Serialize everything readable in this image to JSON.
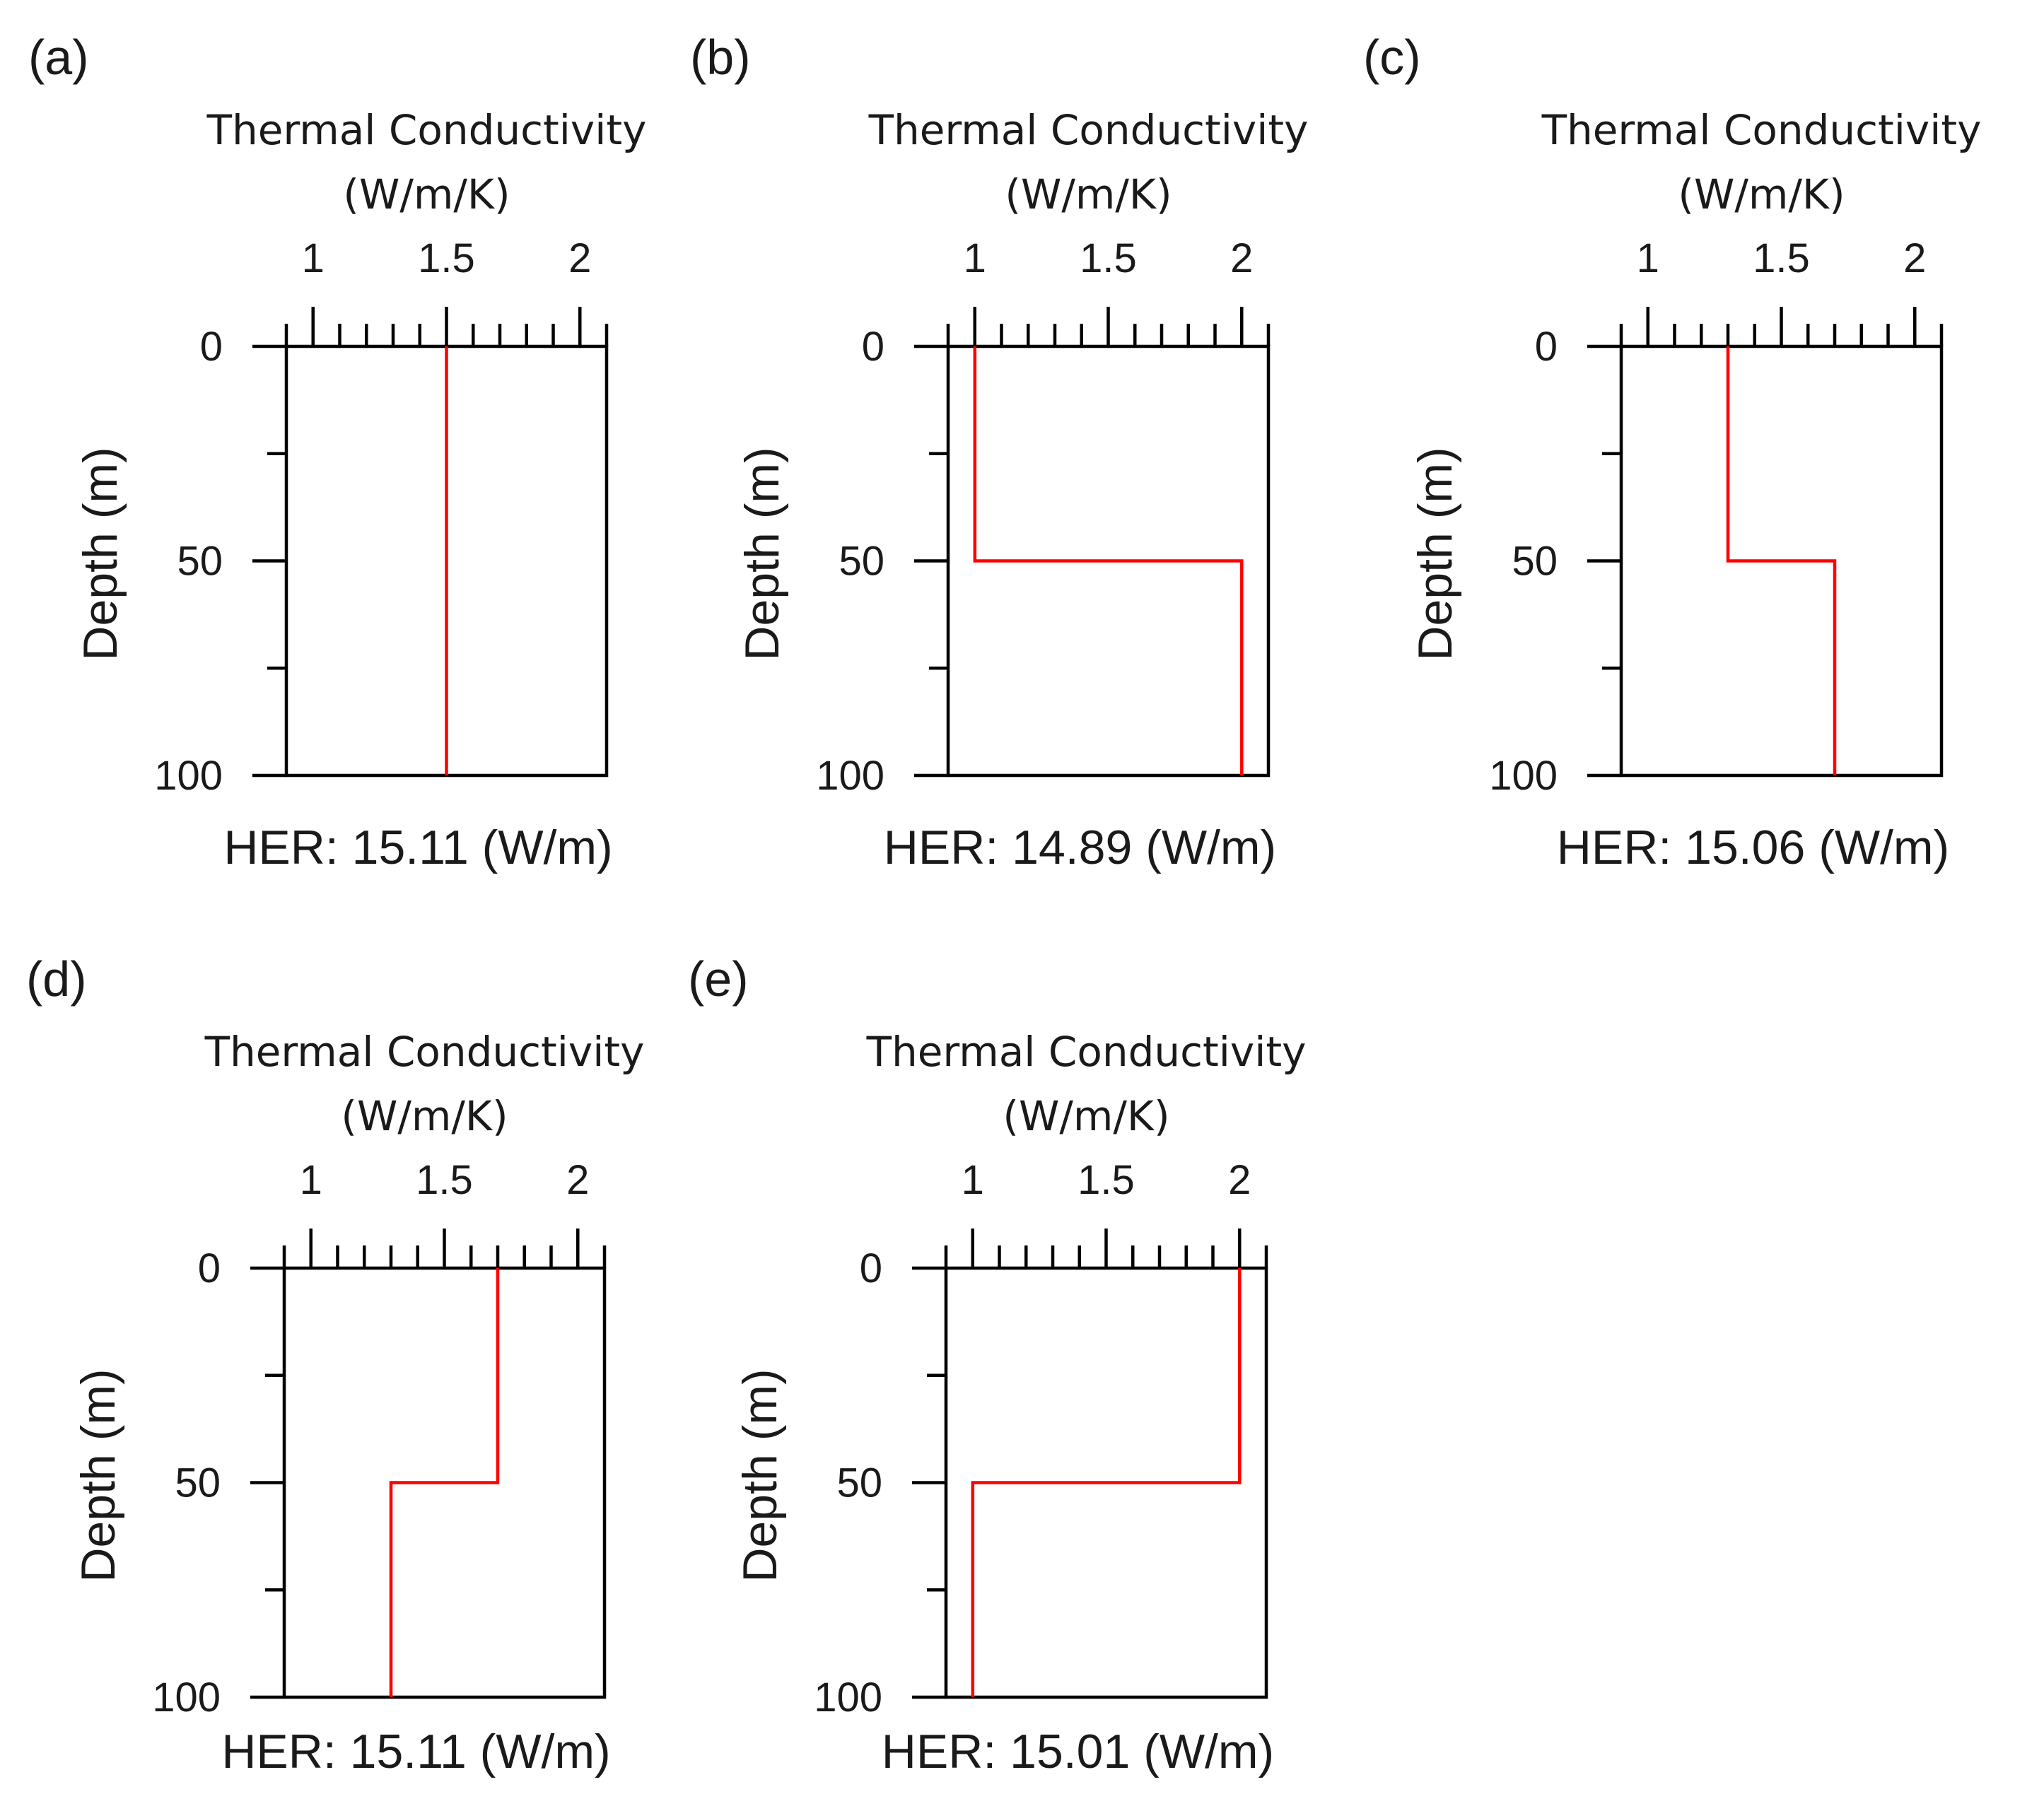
{
  "chart_data": [
    {
      "type": "line",
      "panel_label": "(a)",
      "title": "Thermal Conductivity",
      "xunit": "(W/m/K)",
      "xlabel": "Thermal Conductivity (W/m/K)",
      "ylabel": "Depth (m)",
      "xlim": [
        0.9,
        2.1
      ],
      "ylim": [
        100,
        0
      ],
      "xticks": [
        1,
        1.5,
        2
      ],
      "yticks": [
        0,
        50,
        100
      ],
      "annotation": "HER:  15.11 (W/m)",
      "series": [
        {
          "points": [
            [
              1.5,
              0
            ],
            [
              1.5,
              100
            ]
          ]
        }
      ]
    },
    {
      "type": "line",
      "panel_label": "(b)",
      "title": "Thermal Conductivity",
      "xunit": "(W/m/K)",
      "xlabel": "Thermal Conductivity (W/m/K)",
      "ylabel": "Depth (m)",
      "xlim": [
        0.9,
        2.1
      ],
      "ylim": [
        100,
        0
      ],
      "xticks": [
        1,
        1.5,
        2
      ],
      "yticks": [
        0,
        50,
        100
      ],
      "annotation": "HER: 14.89 (W/m)",
      "series": [
        {
          "points": [
            [
              1.0,
              0
            ],
            [
              1.0,
              50
            ],
            [
              2.0,
              50
            ],
            [
              2.0,
              100
            ]
          ]
        }
      ]
    },
    {
      "type": "line",
      "panel_label": "(c)",
      "title": "Thermal Conductivity",
      "xunit": "(W/m/K)",
      "xlabel": "Thermal Conductivity (W/m/K)",
      "ylabel": "Depth (m)",
      "xlim": [
        0.9,
        2.1
      ],
      "ylim": [
        100,
        0
      ],
      "xticks": [
        1,
        1.5,
        2
      ],
      "yticks": [
        0,
        50,
        100
      ],
      "annotation": "HER:  15.06 (W/m)",
      "series": [
        {
          "points": [
            [
              1.3,
              0
            ],
            [
              1.3,
              50
            ],
            [
              1.7,
              50
            ],
            [
              1.7,
              100
            ]
          ]
        }
      ]
    },
    {
      "type": "line",
      "panel_label": "(d)",
      "title": "Thermal Conductivity",
      "xunit": "(W/m/K)",
      "xlabel": "Thermal Conductivity (W/m/K)",
      "ylabel": "Depth (m)",
      "xlim": [
        0.9,
        2.1
      ],
      "ylim": [
        100,
        0
      ],
      "xticks": [
        1,
        1.5,
        2
      ],
      "yticks": [
        0,
        50,
        100
      ],
      "annotation": "HER:  15.11 (W/m)",
      "series": [
        {
          "points": [
            [
              1.7,
              0
            ],
            [
              1.7,
              50
            ],
            [
              1.3,
              50
            ],
            [
              1.3,
              100
            ]
          ]
        }
      ]
    },
    {
      "type": "line",
      "panel_label": "(e)",
      "title": "Thermal Conductivity",
      "xunit": "(W/m/K)",
      "xlabel": "Thermal Conductivity (W/m/K)",
      "ylabel": "Depth (m)",
      "xlim": [
        0.9,
        2.1
      ],
      "ylim": [
        100,
        0
      ],
      "xticks": [
        1,
        1.5,
        2
      ],
      "yticks": [
        0,
        50,
        100
      ],
      "annotation": "HER:  15.01 (W/m)",
      "series": [
        {
          "points": [
            [
              2.0,
              0
            ],
            [
              2.0,
              50
            ],
            [
              1.0,
              50
            ],
            [
              1.0,
              100
            ]
          ]
        }
      ]
    }
  ],
  "colors": {
    "series": "#ff0000",
    "axes": "#000000",
    "text": "#1a1a1a"
  }
}
